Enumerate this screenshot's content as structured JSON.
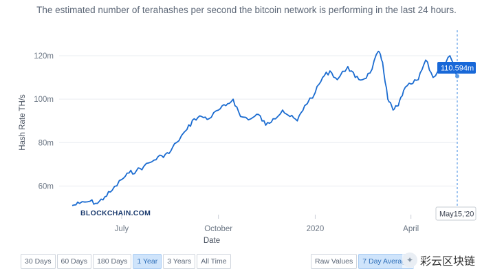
{
  "subtitle": "The estimated number of terahashes per second the bitcoin network is performing in the last 24 hours.",
  "chart_data": {
    "type": "line",
    "ylabel": "Hash Rate TH/s",
    "xlabel": "Date",
    "y_ticks": [
      {
        "value": 60,
        "label": "60m"
      },
      {
        "value": 80,
        "label": "80m"
      },
      {
        "value": 100,
        "label": "100m"
      },
      {
        "value": 120,
        "label": "120m"
      }
    ],
    "x_ticks": [
      {
        "value": "2019-07-01",
        "label": "July"
      },
      {
        "value": "2019-10-01",
        "label": "October"
      },
      {
        "value": "2020-01-01",
        "label": "2020"
      },
      {
        "value": "2020-04-01",
        "label": "April"
      }
    ],
    "xlim": [
      "2019-05-15",
      "2020-05-15"
    ],
    "ylim": [
      50,
      133
    ],
    "grid": "horizontal",
    "series": [
      {
        "color": "#1a6bd0",
        "x": [
          "2019-05-15",
          "2019-05-22",
          "2019-06-01",
          "2019-06-08",
          "2019-06-15",
          "2019-06-22",
          "2019-07-01",
          "2019-07-08",
          "2019-07-15",
          "2019-07-22",
          "2019-08-01",
          "2019-08-08",
          "2019-08-15",
          "2019-08-22",
          "2019-09-01",
          "2019-09-08",
          "2019-09-15",
          "2019-09-22",
          "2019-10-01",
          "2019-10-08",
          "2019-10-15",
          "2019-10-22",
          "2019-11-01",
          "2019-11-08",
          "2019-11-15",
          "2019-11-22",
          "2019-12-01",
          "2019-12-08",
          "2019-12-15",
          "2019-12-22",
          "2020-01-01",
          "2020-01-08",
          "2020-01-15",
          "2020-01-22",
          "2020-02-01",
          "2020-02-08",
          "2020-02-15",
          "2020-02-22",
          "2020-03-01",
          "2020-03-05",
          "2020-03-10",
          "2020-03-15",
          "2020-03-20",
          "2020-03-25",
          "2020-04-01",
          "2020-04-08",
          "2020-04-15",
          "2020-04-22",
          "2020-05-01",
          "2020-05-08",
          "2020-05-15"
        ],
        "values": [
          51,
          52,
          53,
          52,
          55,
          58,
          63,
          66,
          67,
          69,
          72,
          74,
          75,
          80,
          86,
          91,
          92,
          91,
          95,
          97,
          100,
          92,
          91,
          93,
          88,
          91,
          95,
          92,
          90,
          97,
          103,
          110,
          113,
          109,
          115,
          110,
          109,
          112,
          122,
          117,
          100,
          95,
          97,
          104,
          107,
          109,
          118,
          110,
          115,
          120,
          110.594
        ]
      }
    ],
    "tooltip": {
      "value": "110.594m",
      "date": "May15,'20"
    },
    "watermark": "BLOCKCHAIN.COM"
  },
  "controls": {
    "range_buttons": [
      "30 Days",
      "60 Days",
      "180 Days",
      "1 Year",
      "3 Years",
      "All Time"
    ],
    "range_active": "1 Year",
    "mode_buttons": [
      "Raw Values",
      "7 Day Average"
    ],
    "mode_active": "7 Day Average"
  },
  "overlay_watermark": "彩云区块链"
}
